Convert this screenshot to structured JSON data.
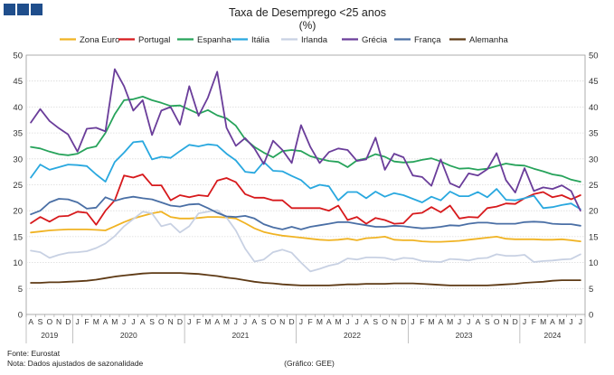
{
  "chart_data": {
    "type": "line",
    "title": "Taxa de Desemprego <25 anos",
    "subtitle": "(%)",
    "ylim": [
      0,
      50
    ],
    "yticks": [
      0,
      5,
      10,
      15,
      20,
      25,
      30,
      35,
      40,
      45,
      50
    ],
    "month_labels": [
      "A",
      "S",
      "O",
      "N",
      "D",
      "J",
      "F",
      "M",
      "A",
      "M",
      "J",
      "J",
      "A",
      "S",
      "O",
      "N",
      "D",
      "J",
      "F",
      "M",
      "A",
      "M",
      "J",
      "J",
      "A",
      "S",
      "O",
      "N",
      "D",
      "J",
      "F",
      "M",
      "A",
      "M",
      "J",
      "J",
      "A",
      "S",
      "O",
      "N",
      "D",
      "J",
      "F",
      "M",
      "A",
      "M",
      "J",
      "J",
      "A",
      "S",
      "O",
      "N",
      "D",
      "J",
      "F",
      "M",
      "A",
      "M",
      "J",
      "J"
    ],
    "year_labels": [
      {
        "label": "2019",
        "start": 0,
        "end": 4
      },
      {
        "label": "2020",
        "start": 5,
        "end": 16
      },
      {
        "label": "2021",
        "start": 17,
        "end": 28
      },
      {
        "label": "2022",
        "start": 29,
        "end": 40
      },
      {
        "label": "2023",
        "start": 41,
        "end": 52
      },
      {
        "label": "2024",
        "start": 53,
        "end": 59
      }
    ],
    "series": [
      {
        "name": "Zona Euro",
        "color": "#f0b323",
        "values": [
          15.8,
          16.0,
          16.2,
          16.3,
          16.4,
          16.4,
          16.4,
          16.3,
          16.2,
          17.0,
          17.8,
          18.5,
          19.0,
          19.5,
          19.8,
          18.8,
          18.5,
          18.5,
          18.6,
          18.8,
          18.8,
          18.7,
          18.5,
          17.6,
          16.6,
          15.9,
          15.5,
          15.2,
          15.0,
          14.8,
          14.6,
          14.4,
          14.3,
          14.4,
          14.6,
          14.3,
          14.7,
          14.8,
          15.0,
          14.4,
          14.3,
          14.3,
          14.1,
          14.0,
          14.0,
          14.1,
          14.2,
          14.4,
          14.6,
          14.8,
          15.0,
          14.6,
          14.5,
          14.5,
          14.5,
          14.4,
          14.4,
          14.5,
          14.3,
          14.1
        ]
      },
      {
        "name": "Portugal",
        "color": "#d7191c",
        "values": [
          17.6,
          18.8,
          17.9,
          18.9,
          19.0,
          19.8,
          19.6,
          17.3,
          20.0,
          22.0,
          26.8,
          26.4,
          27.0,
          24.9,
          24.9,
          22.0,
          23.0,
          22.6,
          23.0,
          22.8,
          25.8,
          26.3,
          25.5,
          23.2,
          22.5,
          22.5,
          22.0,
          22.0,
          20.5,
          20.5,
          20.5,
          20.5,
          20.0,
          21.0,
          18.2,
          18.8,
          17.5,
          18.6,
          18.2,
          17.5,
          17.6,
          19.4,
          19.6,
          20.7,
          19.7,
          21.0,
          18.5,
          18.8,
          18.7,
          20.5,
          20.8,
          21.4,
          21.3,
          22.4,
          23.2,
          23.6,
          22.6,
          23.0,
          22.2,
          23.0
        ]
      },
      {
        "name": "Espanha",
        "color": "#27a35b",
        "values": [
          32.3,
          32.0,
          31.4,
          30.9,
          30.7,
          31.0,
          32.0,
          32.4,
          35.0,
          38.6,
          41.3,
          41.5,
          42.0,
          41.3,
          40.8,
          40.2,
          40.3,
          39.5,
          38.7,
          39.4,
          38.4,
          37.8,
          36.4,
          33.8,
          32.3,
          31.2,
          30.3,
          31.5,
          31.7,
          31.5,
          30.5,
          30.0,
          29.6,
          29.4,
          28.4,
          29.7,
          30.1,
          30.9,
          30.4,
          29.5,
          29.3,
          29.4,
          29.8,
          30.1,
          29.5,
          28.7,
          28.1,
          28.2,
          27.9,
          28.1,
          28.6,
          29.1,
          28.8,
          28.7,
          28.1,
          27.6,
          27.0,
          26.7,
          26.0,
          25.6
        ]
      },
      {
        "name": "Itália",
        "color": "#29a8df",
        "values": [
          26.4,
          28.9,
          27.9,
          28.4,
          28.9,
          28.8,
          28.6,
          27.0,
          25.6,
          29.4,
          31.2,
          33.2,
          33.4,
          29.9,
          30.4,
          30.2,
          31.5,
          32.7,
          32.4,
          32.8,
          32.6,
          31.0,
          29.7,
          27.5,
          27.3,
          29.4,
          27.7,
          27.6,
          26.7,
          25.9,
          24.3,
          25.0,
          24.7,
          22.0,
          23.6,
          23.6,
          22.4,
          23.7,
          22.7,
          23.4,
          23.0,
          22.3,
          21.6,
          22.7,
          22.0,
          23.7,
          22.8,
          22.8,
          23.6,
          22.6,
          24.2,
          22.1,
          22.0,
          22.4,
          22.9,
          20.5,
          20.7,
          21.1,
          21.4,
          20.3
        ]
      },
      {
        "name": "Irlanda",
        "color": "#c8d1e3",
        "values": [
          12.3,
          12.0,
          10.9,
          11.5,
          11.9,
          12.0,
          12.2,
          12.8,
          13.7,
          15.1,
          17.0,
          18.4,
          19.8,
          19.5,
          17.0,
          17.5,
          15.8,
          17.0,
          19.5,
          19.8,
          20.1,
          18.7,
          16.2,
          12.7,
          10.2,
          10.6,
          12.0,
          12.5,
          11.9,
          10.0,
          8.3,
          8.8,
          9.4,
          9.8,
          10.8,
          10.6,
          11.0,
          11.0,
          10.9,
          10.5,
          10.9,
          10.8,
          10.3,
          10.2,
          10.1,
          10.7,
          10.6,
          10.4,
          10.8,
          10.9,
          11.6,
          11.3,
          11.3,
          11.5,
          10.1,
          10.3,
          10.4,
          10.6,
          10.7,
          11.6
        ]
      },
      {
        "name": "Grécia",
        "color": "#6a3d9a",
        "values": [
          37.0,
          39.6,
          37.3,
          35.9,
          34.7,
          31.4,
          35.8,
          36.0,
          35.3,
          47.3,
          44.0,
          39.3,
          41.3,
          34.6,
          39.3,
          40.0,
          36.6,
          44.0,
          38.3,
          41.8,
          46.8,
          36.0,
          32.5,
          34.0,
          32.0,
          29.0,
          33.5,
          31.7,
          29.2,
          36.5,
          32.3,
          29.2,
          31.3,
          32.0,
          31.7,
          29.6,
          29.9,
          34.1,
          27.9,
          31.0,
          30.3,
          26.8,
          26.5,
          24.8,
          29.9,
          25.3,
          24.5,
          27.2,
          26.8,
          28.0,
          31.1,
          25.9,
          23.5,
          28.2,
          23.8,
          24.5,
          24.2,
          24.9,
          23.8,
          20.0
        ]
      },
      {
        "name": "França",
        "color": "#4a6fa5",
        "values": [
          19.3,
          20.0,
          21.6,
          22.3,
          22.2,
          21.6,
          20.4,
          20.6,
          22.6,
          21.9,
          22.4,
          22.7,
          22.4,
          22.2,
          21.6,
          21.0,
          20.8,
          21.2,
          21.3,
          20.5,
          19.6,
          18.9,
          18.8,
          19.0,
          18.5,
          17.4,
          16.8,
          16.4,
          16.9,
          16.4,
          16.9,
          17.2,
          17.5,
          17.8,
          17.8,
          17.5,
          17.2,
          16.9,
          16.9,
          17.1,
          17.0,
          16.8,
          16.6,
          16.7,
          16.9,
          17.2,
          17.1,
          17.5,
          17.7,
          17.7,
          17.5,
          17.5,
          17.5,
          17.8,
          17.9,
          17.8,
          17.5,
          17.4,
          17.4,
          17.1
        ]
      },
      {
        "name": "Alemanha",
        "color": "#5e3a15",
        "values": [
          6.1,
          6.1,
          6.2,
          6.2,
          6.3,
          6.4,
          6.5,
          6.7,
          7.0,
          7.3,
          7.5,
          7.7,
          7.9,
          8.0,
          8.0,
          8.0,
          8.0,
          7.9,
          7.8,
          7.6,
          7.4,
          7.1,
          6.9,
          6.6,
          6.3,
          6.1,
          6.0,
          5.8,
          5.7,
          5.6,
          5.6,
          5.6,
          5.6,
          5.7,
          5.8,
          5.8,
          5.9,
          5.9,
          5.9,
          6.0,
          6.0,
          6.0,
          5.9,
          5.8,
          5.7,
          5.6,
          5.6,
          5.6,
          5.6,
          5.6,
          5.7,
          5.8,
          5.9,
          6.1,
          6.2,
          6.3,
          6.5,
          6.6,
          6.6,
          6.6
        ]
      }
    ],
    "source": "Fonte: Eurostat",
    "note": "Nota: Dados ajustados de sazonalidade",
    "credit": "(Gráfico: GEE)"
  }
}
